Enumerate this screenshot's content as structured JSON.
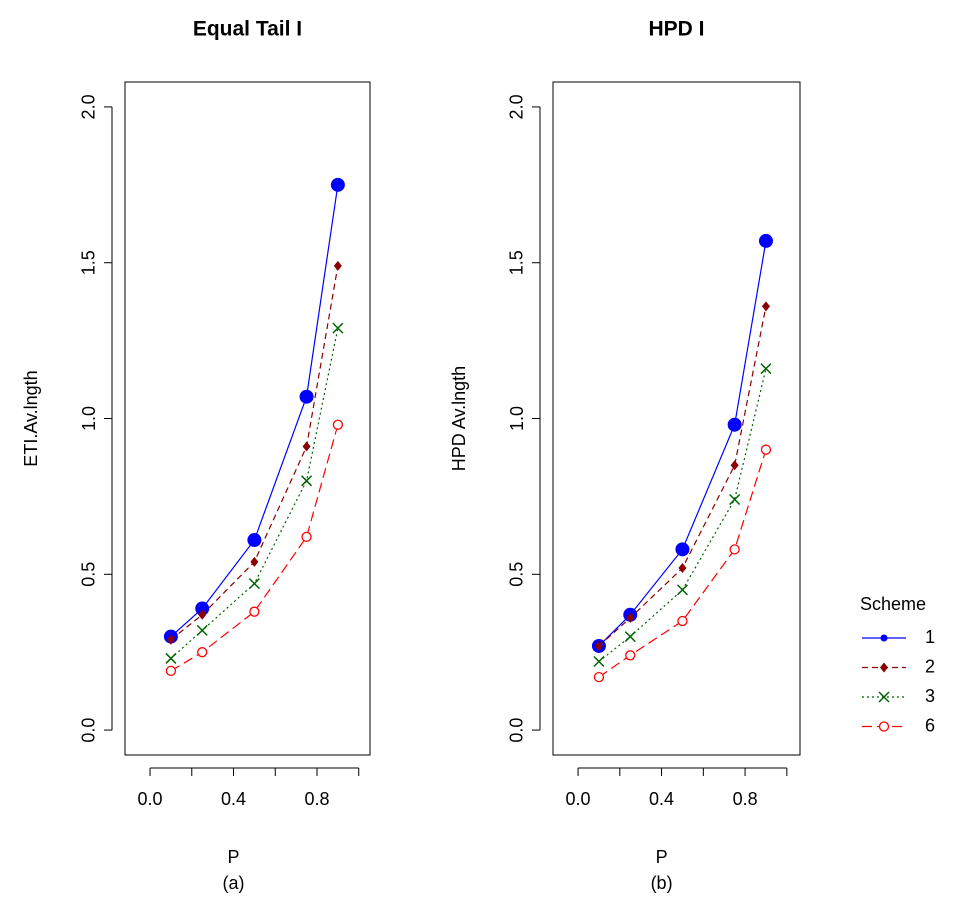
{
  "chart_data": [
    {
      "type": "line",
      "title": "Equal Tail I",
      "xlabel": "P",
      "caption": "(a)",
      "ylabel": "ETI.Av.lngth",
      "x": [
        0.1,
        0.25,
        0.5,
        0.75,
        0.9
      ],
      "xlim": [
        -0.12,
        1.054
      ],
      "ylim": [
        -0.08,
        2.08
      ],
      "xticks": [
        {
          "value": 0,
          "label": "0.0"
        },
        {
          "value": 0.4,
          "label": "0.4"
        },
        {
          "value": 0.8,
          "label": "0.8"
        }
      ],
      "xticks_minor": [
        0.2,
        0.6,
        1.0
      ],
      "yticks": [
        {
          "value": 0,
          "label": "0.0"
        },
        {
          "value": 0.5,
          "label": "0.5"
        },
        {
          "value": 1,
          "label": "1.0"
        },
        {
          "value": 1.5,
          "label": "1.5"
        },
        {
          "value": 2,
          "label": "2.0"
        }
      ],
      "series": [
        {
          "name": "1",
          "color": "#0000ff",
          "line_style": "solid",
          "marker": "circle",
          "values": [
            0.3,
            0.39,
            0.61,
            1.07,
            1.75
          ]
        },
        {
          "name": "2",
          "color": "#8b0000",
          "line_style": "dashed",
          "marker": "diamond",
          "values": [
            0.29,
            0.37,
            0.54,
            0.91,
            1.49
          ]
        },
        {
          "name": "3",
          "color": "#006400",
          "line_style": "dotted",
          "marker": "x",
          "values": [
            0.23,
            0.32,
            0.47,
            0.8,
            1.29
          ]
        },
        {
          "name": "6",
          "color": "#ff0000",
          "line_style": "longdash",
          "marker": "open-circle",
          "values": [
            0.19,
            0.25,
            0.38,
            0.62,
            0.98
          ]
        }
      ],
      "legend": {
        "title": "Scheme"
      }
    },
    {
      "type": "line",
      "title": "HPD I",
      "xlabel": "P",
      "caption": "(b)",
      "ylabel": "HPD Av.lngth",
      "x": [
        0.1,
        0.25,
        0.5,
        0.75,
        0.9
      ],
      "xlim": [
        -0.12,
        1.063
      ],
      "ylim": [
        -0.08,
        2.08
      ],
      "xticks": [
        {
          "value": 0,
          "label": "0.0"
        },
        {
          "value": 0.4,
          "label": "0.4"
        },
        {
          "value": 0.8,
          "label": "0.8"
        }
      ],
      "xticks_minor": [
        0.2,
        0.6,
        1.0
      ],
      "yticks": [
        {
          "value": 0,
          "label": "0.0"
        },
        {
          "value": 0.5,
          "label": "0.5"
        },
        {
          "value": 1,
          "label": "1.0"
        },
        {
          "value": 1.5,
          "label": "1.5"
        },
        {
          "value": 2,
          "label": "2.0"
        }
      ],
      "series": [
        {
          "name": "1",
          "color": "#0000ff",
          "line_style": "solid",
          "marker": "circle",
          "values": [
            0.27,
            0.37,
            0.58,
            0.98,
            1.57
          ]
        },
        {
          "name": "2",
          "color": "#8b0000",
          "line_style": "dashed",
          "marker": "diamond",
          "values": [
            0.27,
            0.36,
            0.52,
            0.85,
            1.36
          ]
        },
        {
          "name": "3",
          "color": "#006400",
          "line_style": "dotted",
          "marker": "x",
          "values": [
            0.22,
            0.3,
            0.45,
            0.74,
            1.16
          ]
        },
        {
          "name": "6",
          "color": "#ff0000",
          "line_style": "longdash",
          "marker": "open-circle",
          "values": [
            0.17,
            0.24,
            0.35,
            0.58,
            0.9
          ]
        }
      ]
    }
  ]
}
